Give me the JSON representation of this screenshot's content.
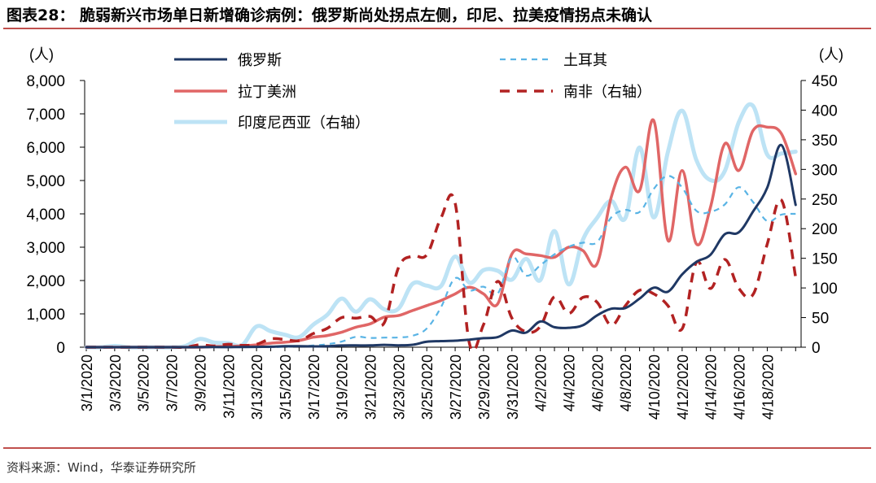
{
  "header": {
    "title": "图表28：  脆弱新兴市场单日新增确诊病例：俄罗斯尚处拐点左侧，印尼、拉美疫情拐点未确认"
  },
  "source": "资料来源：Wind，华泰证券研究所",
  "colors": {
    "russia": "#1f3864",
    "turkey": "#5ab4e5",
    "latam": "#e06666",
    "south_africa": "#b22222",
    "indonesia": "#bde3f5",
    "rule": "#c0504d"
  },
  "chart_data": {
    "type": "line",
    "left_unit": "(人)",
    "right_unit": "(人)",
    "left_ylim": [
      0,
      8000
    ],
    "left_ticks": [
      "0",
      "1,000",
      "2,000",
      "3,000",
      "4,000",
      "5,000",
      "6,000",
      "7,000",
      "8,000"
    ],
    "right_ylim": [
      0,
      450
    ],
    "right_ticks": [
      "0",
      "50",
      "100",
      "150",
      "200",
      "250",
      "300",
      "350",
      "400",
      "450"
    ],
    "x_tick_labels": [
      "3/1/2020",
      "3/3/2020",
      "3/5/2020",
      "3/7/2020",
      "3/9/2020",
      "3/11/2020",
      "3/13/2020",
      "3/15/2020",
      "3/17/2020",
      "3/19/2020",
      "3/21/2020",
      "3/23/2020",
      "3/25/2020",
      "3/27/2020",
      "3/29/2020",
      "3/31/2020",
      "4/2/2020",
      "4/4/2020",
      "4/6/2020",
      "4/8/2020",
      "4/10/2020",
      "4/12/2020",
      "4/14/2020",
      "4/16/2020",
      "4/18/2020"
    ],
    "x": [
      "3/1",
      "3/2",
      "3/3",
      "3/4",
      "3/5",
      "3/6",
      "3/7",
      "3/8",
      "3/9",
      "3/10",
      "3/11",
      "3/12",
      "3/13",
      "3/14",
      "3/15",
      "3/16",
      "3/17",
      "3/18",
      "3/19",
      "3/20",
      "3/21",
      "3/22",
      "3/23",
      "3/24",
      "3/25",
      "3/26",
      "3/27",
      "3/28",
      "3/29",
      "3/30",
      "3/31",
      "4/1",
      "4/2",
      "4/3",
      "4/4",
      "4/5",
      "4/6",
      "4/7",
      "4/8",
      "4/9",
      "4/10",
      "4/11",
      "4/12",
      "4/13",
      "4/14",
      "4/15",
      "4/16",
      "4/17",
      "4/18",
      "4/19",
      "4/20"
    ],
    "series": [
      {
        "name": "俄罗斯",
        "axis": "left",
        "style": "solid",
        "key": "russia",
        "values": [
          0,
          0,
          0,
          0,
          0,
          0,
          0,
          0,
          2,
          5,
          3,
          8,
          10,
          14,
          30,
          30,
          25,
          32,
          52,
          54,
          53,
          71,
          57,
          74,
          163,
          182,
          196,
          228,
          270,
          302,
          500,
          440,
          771,
          601,
          582,
          658,
          954,
          1154,
          1175,
          1459,
          1786,
          1667,
          2186,
          2558,
          2774,
          3388,
          3448,
          4070,
          4785,
          6060,
          4268
        ]
      },
      {
        "name": "土耳其",
        "axis": "left",
        "style": "dashed",
        "key": "turkey",
        "values": [
          0,
          0,
          0,
          0,
          0,
          0,
          0,
          0,
          0,
          0,
          1,
          0,
          4,
          1,
          12,
          29,
          51,
          93,
          168,
          311,
          277,
          289,
          293,
          343,
          561,
          1196,
          2069,
          1704,
          1815,
          1610,
          2704,
          2148,
          2456,
          2786,
          3013,
          3135,
          3148,
          3892,
          4117,
          4056,
          4747,
          5138,
          4789,
          4093,
          4062,
          4281,
          4801,
          4353,
          3783,
          3977,
          4000
        ]
      },
      {
        "name": "拉丁美洲",
        "axis": "left",
        "style": "solid",
        "key": "latam",
        "values": [
          0,
          0,
          0,
          0,
          0,
          0,
          0,
          0,
          0,
          20,
          20,
          40,
          70,
          120,
          150,
          200,
          300,
          350,
          450,
          600,
          700,
          900,
          950,
          1100,
          1250,
          1400,
          1600,
          1800,
          1600,
          1300,
          2800,
          2800,
          2750,
          2700,
          3000,
          2900,
          2500,
          4500,
          5400,
          4700,
          6800,
          3200,
          5300,
          3100,
          4200,
          6100,
          5300,
          6500,
          6600,
          6400,
          5200
        ]
      },
      {
        "name": "南非（右轴）",
        "axis": "right",
        "style": "dashed",
        "key": "south_africa",
        "values": [
          0,
          0,
          0,
          0,
          0,
          0,
          0,
          0,
          4,
          2,
          5,
          3,
          5,
          14,
          13,
          11,
          23,
          32,
          50,
          49,
          52,
          41,
          134,
          154,
          156,
          218,
          243,
          7,
          38,
          111,
          49,
          26,
          35,
          85,
          57,
          84,
          76,
          37,
          70,
          96,
          90,
          70,
          31,
          143,
          99,
          148,
          99,
          89,
          174,
          248,
          118
        ]
      },
      {
        "name": "印度尼西亚（右轴）",
        "axis": "right",
        "style": "solid",
        "key": "indonesia",
        "values": [
          0,
          0,
          2,
          0,
          0,
          0,
          0,
          2,
          14,
          8,
          7,
          4,
          35,
          27,
          21,
          17,
          38,
          55,
          82,
          60,
          81,
          64,
          65,
          107,
          104,
          103,
          153,
          109,
          130,
          129,
          114,
          149,
          113,
          196,
          106,
          181,
          218,
          247,
          218,
          337,
          219,
          330,
          399,
          316,
          282,
          297,
          380,
          407,
          325,
          327,
          330
        ]
      }
    ]
  }
}
